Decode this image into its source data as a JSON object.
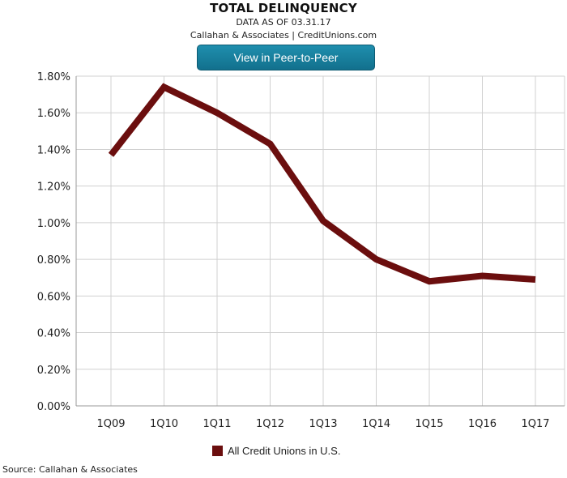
{
  "header": {
    "title": "TOTAL DELINQUENCY",
    "subtitle": "DATA AS OF 03.31.17",
    "credits": "Callahan & Associates | CreditUnions.com",
    "button_label": "View in Peer-to-Peer"
  },
  "footer": {
    "source": "Source: Callahan & Associates"
  },
  "chart_data": {
    "type": "line",
    "title": "TOTAL DELINQUENCY",
    "subtitle": "DATA AS OF 03.31.17",
    "categories": [
      "1Q09",
      "1Q10",
      "1Q11",
      "1Q12",
      "1Q13",
      "1Q14",
      "1Q15",
      "1Q16",
      "1Q17"
    ],
    "series": [
      {
        "name": "All Credit Unions in U.S.",
        "color": "#6b0e0e",
        "values": [
          1.37,
          1.74,
          1.6,
          1.43,
          1.01,
          0.8,
          0.68,
          0.71,
          0.69
        ]
      }
    ],
    "ylim": [
      0,
      1.8
    ],
    "yticks": [
      0,
      0.2,
      0.4,
      0.6,
      0.8,
      1.0,
      1.2,
      1.4,
      1.6,
      1.8
    ],
    "ytick_labels": [
      "0.00%",
      "0.20%",
      "0.40%",
      "0.60%",
      "0.80%",
      "1.00%",
      "1.20%",
      "1.40%",
      "1.60%",
      "1.80%"
    ],
    "y_format": "percent",
    "grid": true,
    "legend": "bottom-center",
    "xlabel": "",
    "ylabel": ""
  }
}
